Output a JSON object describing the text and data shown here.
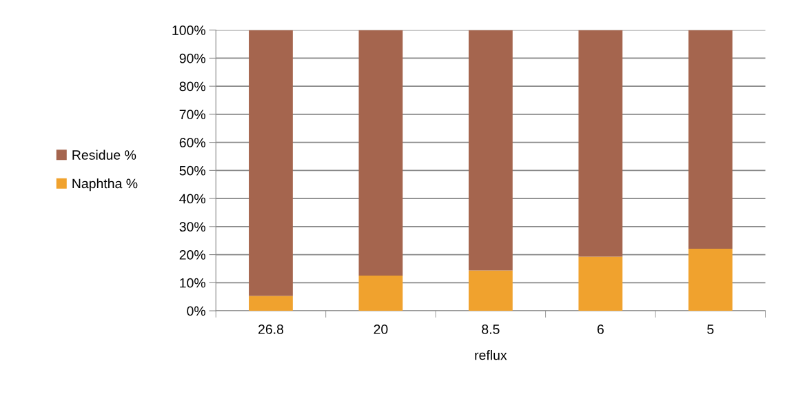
{
  "chart_data": {
    "type": "bar",
    "stacked": true,
    "xlabel": "reflux",
    "categories": [
      "26.8",
      "20",
      "8.5",
      "6",
      "5"
    ],
    "series": [
      {
        "name": "Naphtha %",
        "color": "#f0a22e",
        "values": [
          5.3,
          12.5,
          14.4,
          19.3,
          22.1
        ]
      },
      {
        "name": "Residue %",
        "color": "#a5654e",
        "values": [
          94.7,
          87.5,
          85.6,
          80.7,
          77.9
        ]
      }
    ],
    "ylim": [
      0,
      100
    ],
    "yticks": [
      {
        "value": 0,
        "label": "0%"
      },
      {
        "value": 10,
        "label": "10%"
      },
      {
        "value": 20,
        "label": "20%"
      },
      {
        "value": 30,
        "label": "30%"
      },
      {
        "value": 40,
        "label": "40%"
      },
      {
        "value": 50,
        "label": "50%"
      },
      {
        "value": 60,
        "label": "60%"
      },
      {
        "value": 70,
        "label": "70%"
      },
      {
        "value": 80,
        "label": "80%"
      },
      {
        "value": 90,
        "label": "90%"
      },
      {
        "value": 100,
        "label": "100%"
      }
    ],
    "grid": "y",
    "legend": "left"
  }
}
